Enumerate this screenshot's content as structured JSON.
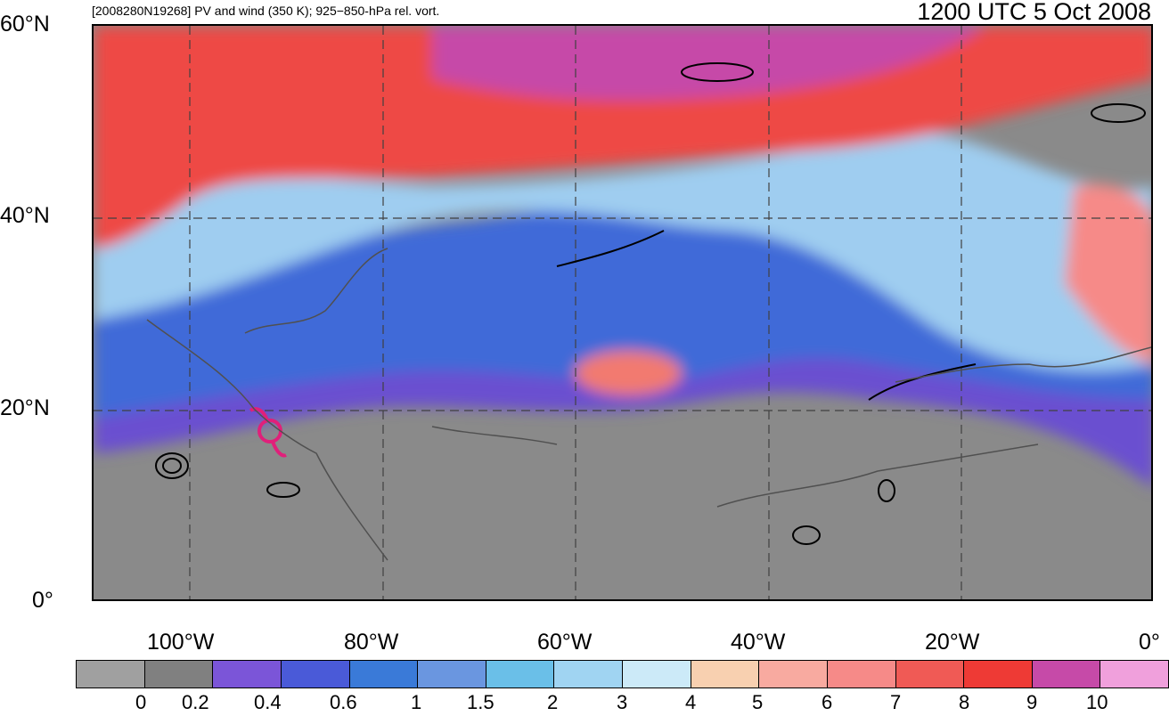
{
  "title": {
    "left": "[2008280N19268] PV and wind (350 K); 925−850-hPa rel. vort.",
    "right": "1200 UTC 5 Oct 2008"
  },
  "lat_labels": [
    "60°N",
    "40°N",
    "20°N",
    "0°"
  ],
  "lon_labels": [
    "100°W",
    "80°W",
    "60°W",
    "40°W",
    "20°W",
    "0°"
  ],
  "colorbar": {
    "colors": [
      "#a0a0a0",
      "#808080",
      "#7b55d8",
      "#4a5ad8",
      "#3a7ad8",
      "#6a96e0",
      "#6abfe8",
      "#a0d4f2",
      "#cceaf8",
      "#f8d0b0",
      "#f8aaa0",
      "#f68a88",
      "#f05a55",
      "#ee3a35",
      "#c64aa8",
      "#f0a0dc"
    ],
    "labels": [
      "0",
      "0.2",
      "0.4",
      "0.6",
      "1",
      "1.5",
      "2",
      "3",
      "4",
      "5",
      "6",
      "7",
      "8",
      "9",
      "10"
    ]
  }
}
